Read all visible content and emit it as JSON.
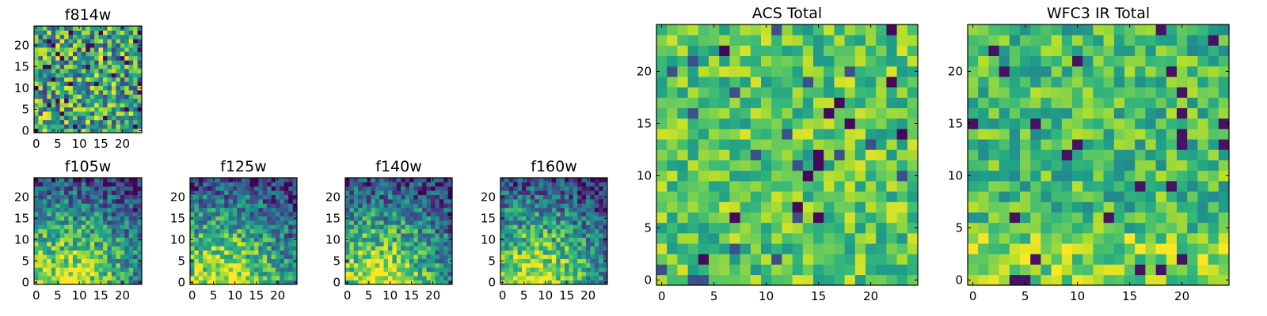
{
  "chart_data": [
    {
      "type": "heatmap",
      "title": "f814w",
      "grid": [
        25,
        25
      ],
      "colormap": "viridis",
      "pattern": "noise",
      "seed": 11,
      "x_ticks": [
        0,
        5,
        10,
        15,
        20
      ],
      "y_ticks": [
        0,
        5,
        10,
        15,
        20
      ],
      "xlim": [
        -0.5,
        24.5
      ],
      "ylim": [
        -0.5,
        24.5
      ]
    },
    {
      "type": "heatmap",
      "title": "f105w",
      "grid": [
        25,
        25
      ],
      "colormap": "viridis",
      "pattern": "gradient",
      "seed": 23,
      "x_ticks": [
        0,
        5,
        10,
        15,
        20
      ],
      "y_ticks": [
        0,
        5,
        10,
        15,
        20
      ],
      "xlim": [
        -0.5,
        24.5
      ],
      "ylim": [
        -0.5,
        24.5
      ]
    },
    {
      "type": "heatmap",
      "title": "f125w",
      "grid": [
        25,
        25
      ],
      "colormap": "viridis",
      "pattern": "gradient",
      "seed": 37,
      "x_ticks": [
        0,
        5,
        10,
        15,
        20
      ],
      "y_ticks": [
        0,
        5,
        10,
        15,
        20
      ],
      "xlim": [
        -0.5,
        24.5
      ],
      "ylim": [
        -0.5,
        24.5
      ]
    },
    {
      "type": "heatmap",
      "title": "f140w",
      "grid": [
        25,
        25
      ],
      "colormap": "viridis",
      "pattern": "gradient",
      "seed": 41,
      "x_ticks": [
        0,
        5,
        10,
        15,
        20
      ],
      "y_ticks": [
        0,
        5,
        10,
        15,
        20
      ],
      "xlim": [
        -0.5,
        24.5
      ],
      "ylim": [
        -0.5,
        24.5
      ]
    },
    {
      "type": "heatmap",
      "title": "f160w",
      "grid": [
        25,
        25
      ],
      "colormap": "viridis",
      "pattern": "gradient",
      "seed": 53,
      "x_ticks": [
        0,
        5,
        10,
        15,
        20
      ],
      "y_ticks": [
        0,
        5,
        10,
        15,
        20
      ],
      "xlim": [
        -0.5,
        24.5
      ],
      "ylim": [
        -0.5,
        24.5
      ]
    },
    {
      "type": "heatmap",
      "title": "ACS Total",
      "grid": [
        25,
        25
      ],
      "colormap": "viridis",
      "pattern": "noise-bright",
      "seed": 67,
      "x_ticks": [
        0,
        5,
        10,
        15,
        20
      ],
      "y_ticks": [
        0,
        5,
        10,
        15,
        20
      ],
      "xlim": [
        -0.5,
        24.5
      ],
      "ylim": [
        -0.5,
        24.5
      ]
    },
    {
      "type": "heatmap",
      "title": "WFC3 IR Total",
      "grid": [
        25,
        25
      ],
      "colormap": "viridis",
      "pattern": "noise-bottom",
      "seed": 79,
      "x_ticks": [
        0,
        5,
        10,
        15,
        20
      ],
      "y_ticks": [
        0,
        5,
        10,
        15,
        20
      ],
      "xlim": [
        -0.5,
        24.5
      ],
      "ylim": [
        -0.5,
        24.5
      ]
    }
  ]
}
